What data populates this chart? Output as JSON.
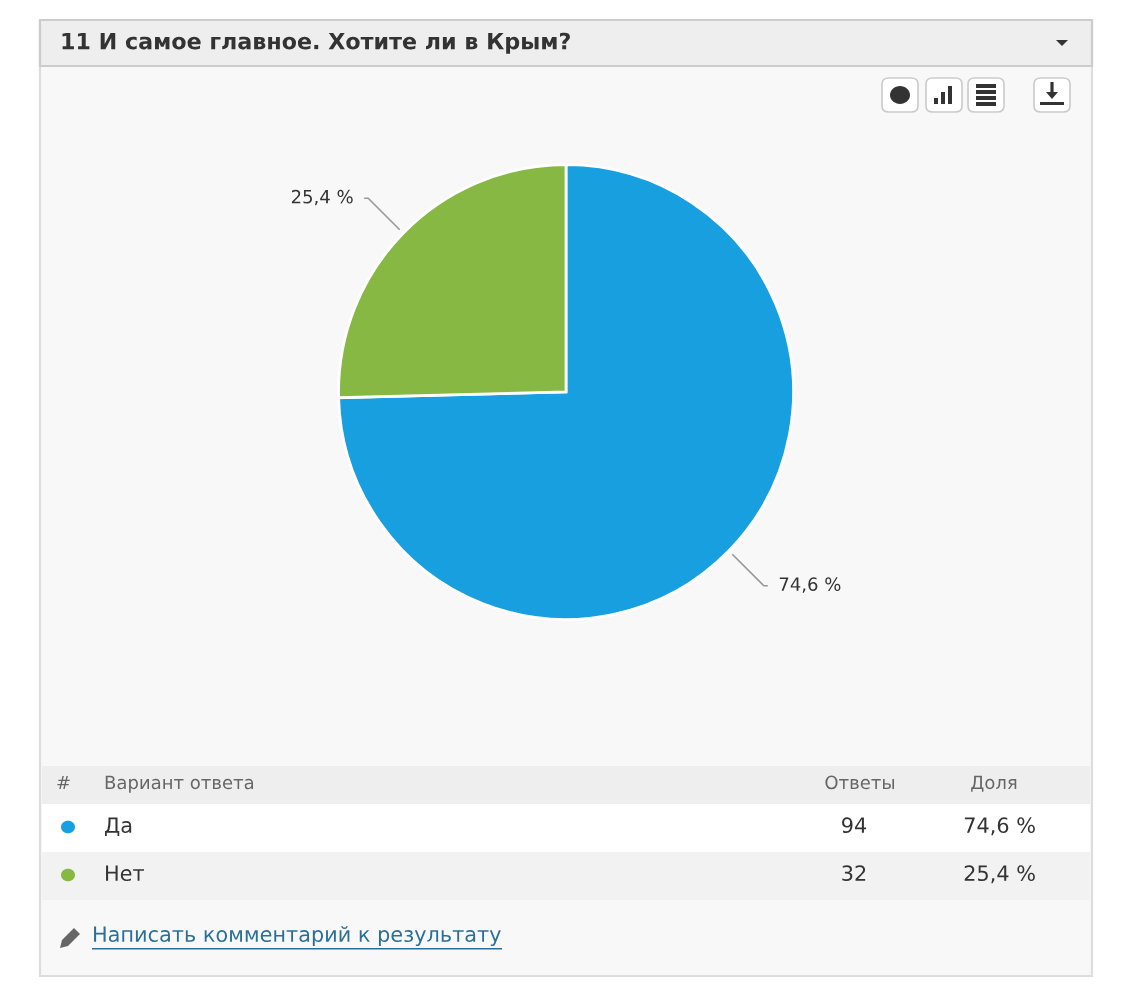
{
  "chart_data": {
    "type": "pie",
    "title": "11 И самое главное. Хотите ли в Крым?",
    "categories": [
      "Да",
      "Нет"
    ],
    "values": [
      74.6,
      25.4
    ],
    "colors": [
      "#189fe0",
      "#86b843"
    ],
    "value_labels": [
      "74,6 %",
      "25,4 %"
    ],
    "legend": "bottom left",
    "annotations": [
      "#",
      "Вариант ответа",
      "Ответы",
      "Доля",
      "94",
      "32",
      "Написать комментарий к результату"
    ]
  }
}
